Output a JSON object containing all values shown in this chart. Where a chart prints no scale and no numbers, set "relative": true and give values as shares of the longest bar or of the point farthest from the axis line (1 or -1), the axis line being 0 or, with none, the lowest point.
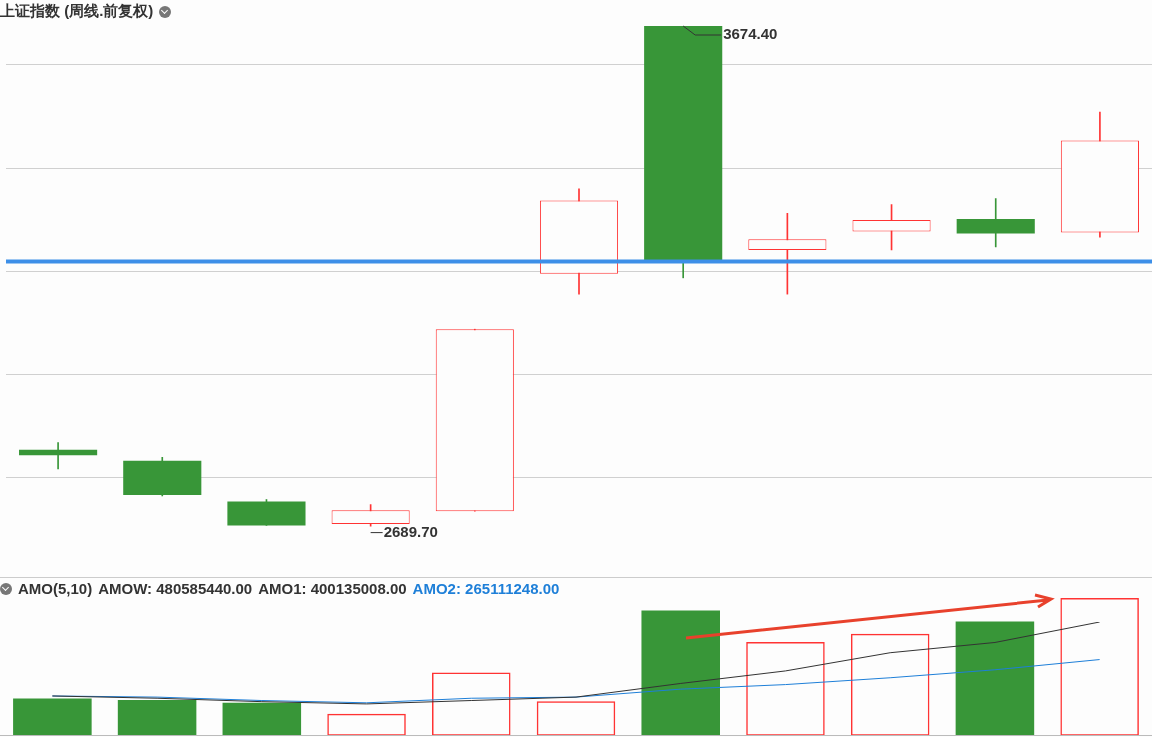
{
  "chart_data": [
    {
      "type": "candlestick",
      "title": "上证指数 (周线.前复权)",
      "categories": [
        null,
        null,
        null,
        null,
        null,
        null,
        null,
        null,
        null,
        null,
        null
      ],
      "ohlc": [
        [
          2841,
          2855,
          2803,
          2830
        ],
        [
          2819,
          2826,
          2750,
          2752
        ],
        [
          2739,
          2743,
          2692,
          2692
        ],
        [
          2695,
          2733,
          2689.7,
          2722
        ],
        [
          2720,
          3078,
          2720,
          3078
        ],
        [
          3187,
          3354,
          3147,
          3331
        ],
        [
          3674.4,
          3674.4,
          3179,
          3211
        ],
        [
          3234,
          3306,
          3147,
          3255
        ],
        [
          3270,
          3323,
          3234,
          3293
        ],
        [
          3295,
          3335,
          3240,
          3266
        ],
        [
          3268,
          3505,
          3259,
          3449
        ]
      ],
      "colors": [
        "#389638",
        "#389638",
        "#389638",
        "#ff3333",
        "#ff3333",
        "#ff3333",
        "#389638",
        "#ff3333",
        "#ff3333",
        "#389638",
        "#ff3333"
      ],
      "yticks": [
        {
          "value": 2786,
          "label": null
        },
        {
          "value": 2989,
          "label": null
        },
        {
          "value": 3192,
          "label": null
        },
        {
          "value": 3395,
          "label": null
        },
        {
          "value": 3598,
          "label": null
        }
      ],
      "grid": "y",
      "legend": false,
      "ref_lines": [
        {
          "axis": "y",
          "value": 3211,
          "color": "#3d8fe8"
        }
      ],
      "annotations": [
        "3674.40",
        "2689.70"
      ]
    },
    {
      "type": "bar",
      "title": "AMO(5,10)",
      "categories": [
        null,
        null,
        null,
        null,
        null,
        null,
        null,
        null,
        null,
        null,
        null
      ],
      "relative": true,
      "series": [
        {
          "name": "AMOW: 480585440.00",
          "color": "#333333",
          "colors": [
            "#389638",
            "#389638",
            "#389638",
            "#ff3333",
            "#ff3333",
            "#ff3333",
            "#389638",
            "#ff3333",
            "#ff3333",
            "#389638",
            "#ff3333"
          ],
          "values": [
            0.27,
            0.26,
            0.24,
            0.16,
            0.46,
            0.25,
            0.91,
            0.68,
            0.74,
            0.83,
            1
          ]
        }
      ]
    },
    {
      "type": "line",
      "categories": [
        null,
        null,
        null,
        null,
        null,
        null,
        null,
        null,
        null,
        null,
        null
      ],
      "relative": true,
      "series": [
        {
          "name": "AMO1: 400135008.00",
          "color": "#333333",
          "values": [
            0.35,
            0.33,
            0.3,
            0.28,
            0.31,
            0.34,
            0.46,
            0.57,
            0.73,
            0.82,
            1
          ]
        },
        {
          "name": "AMO2: 265111248.00",
          "color": "#1e7fd8",
          "values": [
            0.35,
            0.34,
            0.31,
            0.29,
            0.33,
            0.34,
            0.41,
            0.45,
            0.51,
            0.58,
            0.67
          ]
        }
      ]
    }
  ]
}
